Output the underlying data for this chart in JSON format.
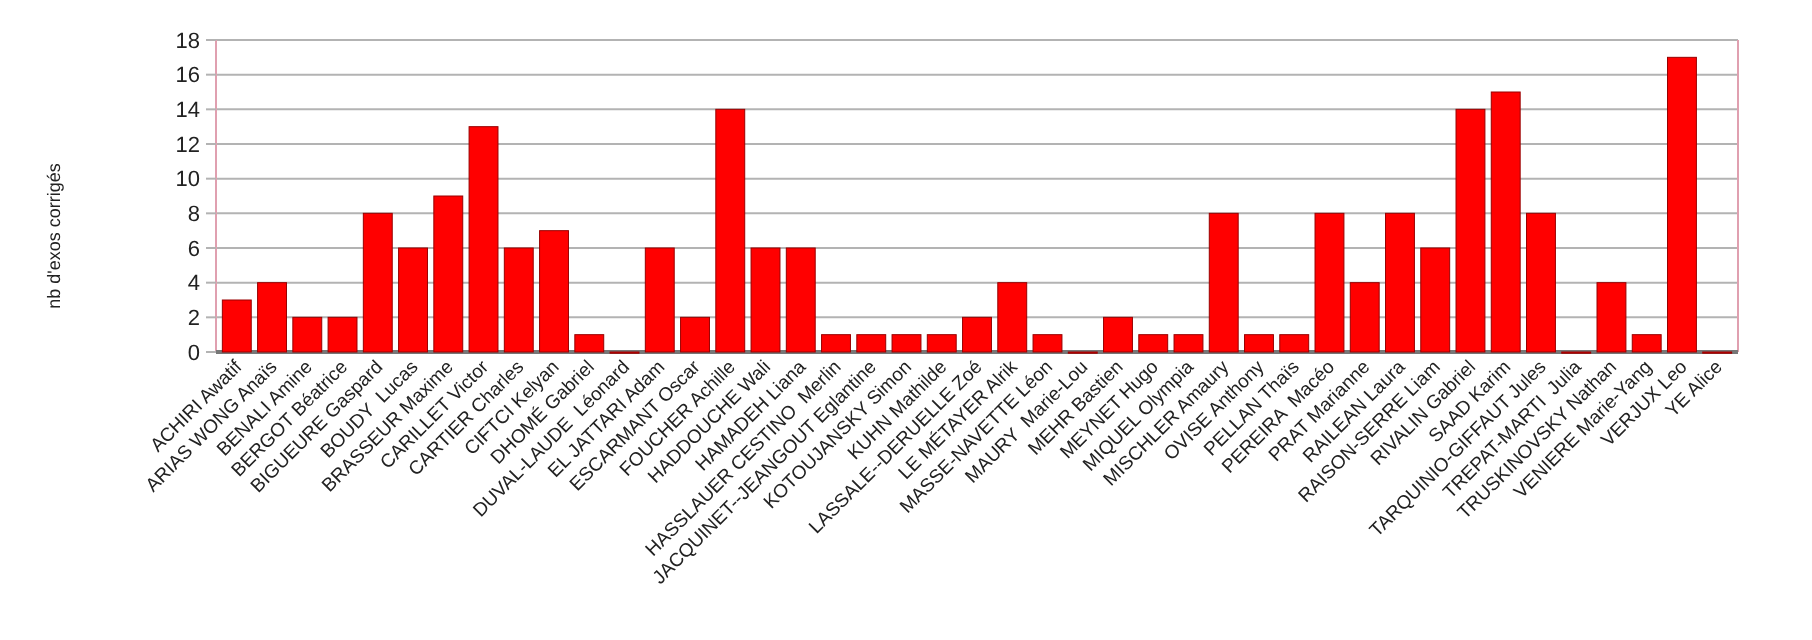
{
  "chart_data": {
    "type": "bar",
    "ylabel": "nb d'exos corrigés",
    "categories": [
      "ACHIRI Awatif",
      "ARIAS WONG Anaïs",
      "BENALI Amine",
      "BERGOT Béatrice",
      "BIGUEURE Gaspard",
      "BOUDY  Lucas",
      "BRASSEUR Maxime",
      "CARILLET Victor",
      "CARTIER Charles",
      "CIFTCI Kelyan",
      "DHOMÉ Gabriel",
      "DUVAL-LAUDE  Léonard",
      "EL JATTARI Adam",
      "ESCARMANT Oscar",
      "FOUCHER Achille",
      "HADDOUCHE Wali",
      "HAMADEH Liana",
      "HASSLAUER CESTINO  Merlin",
      "JACQUINET--JEANGOUT Eglantine",
      "KOTOUJANSKY Simon",
      "KUHN Mathilde",
      "LASSALE--DERUELLE Zoé",
      "LE MÉTAYER Alrik",
      "MASSE-NAVETTE Léon",
      "MAURY  Marie-Lou",
      "MEHR Bastien",
      "MEYNET Hugo",
      "MIQUEL Olympia",
      "MISCHLER Amaury",
      "OVISE Anthony",
      "PELLAN Thaïs",
      "PEREIRA  Macéo",
      "PRAT Marianne",
      "RAILEAN Laura",
      "RAISON-SERRE Liam",
      "RIVALIN Gabriel",
      "SAAD Karim",
      "TARQUINIO-GIFFAUT Jules",
      "TREPAT-MARTI  Julia",
      "TRUSKINOVSKY Nathan",
      "VENIERE Marie-Yang",
      "VERJUX Leo",
      "YE Alice"
    ],
    "values": [
      3,
      4,
      2,
      2,
      8,
      6,
      9,
      13,
      6,
      7,
      1,
      0,
      6,
      2,
      14,
      6,
      6,
      1,
      1,
      1,
      1,
      2,
      4,
      1,
      0,
      2,
      1,
      1,
      8,
      1,
      1,
      8,
      4,
      8,
      6,
      14,
      15,
      8,
      0,
      4,
      1,
      17,
      0
    ],
    "color": "#ff0000",
    "ylim": [
      0,
      18
    ],
    "yticks": [
      0,
      2,
      4,
      6,
      8,
      10,
      12,
      14,
      16,
      18
    ],
    "grid": "y"
  }
}
